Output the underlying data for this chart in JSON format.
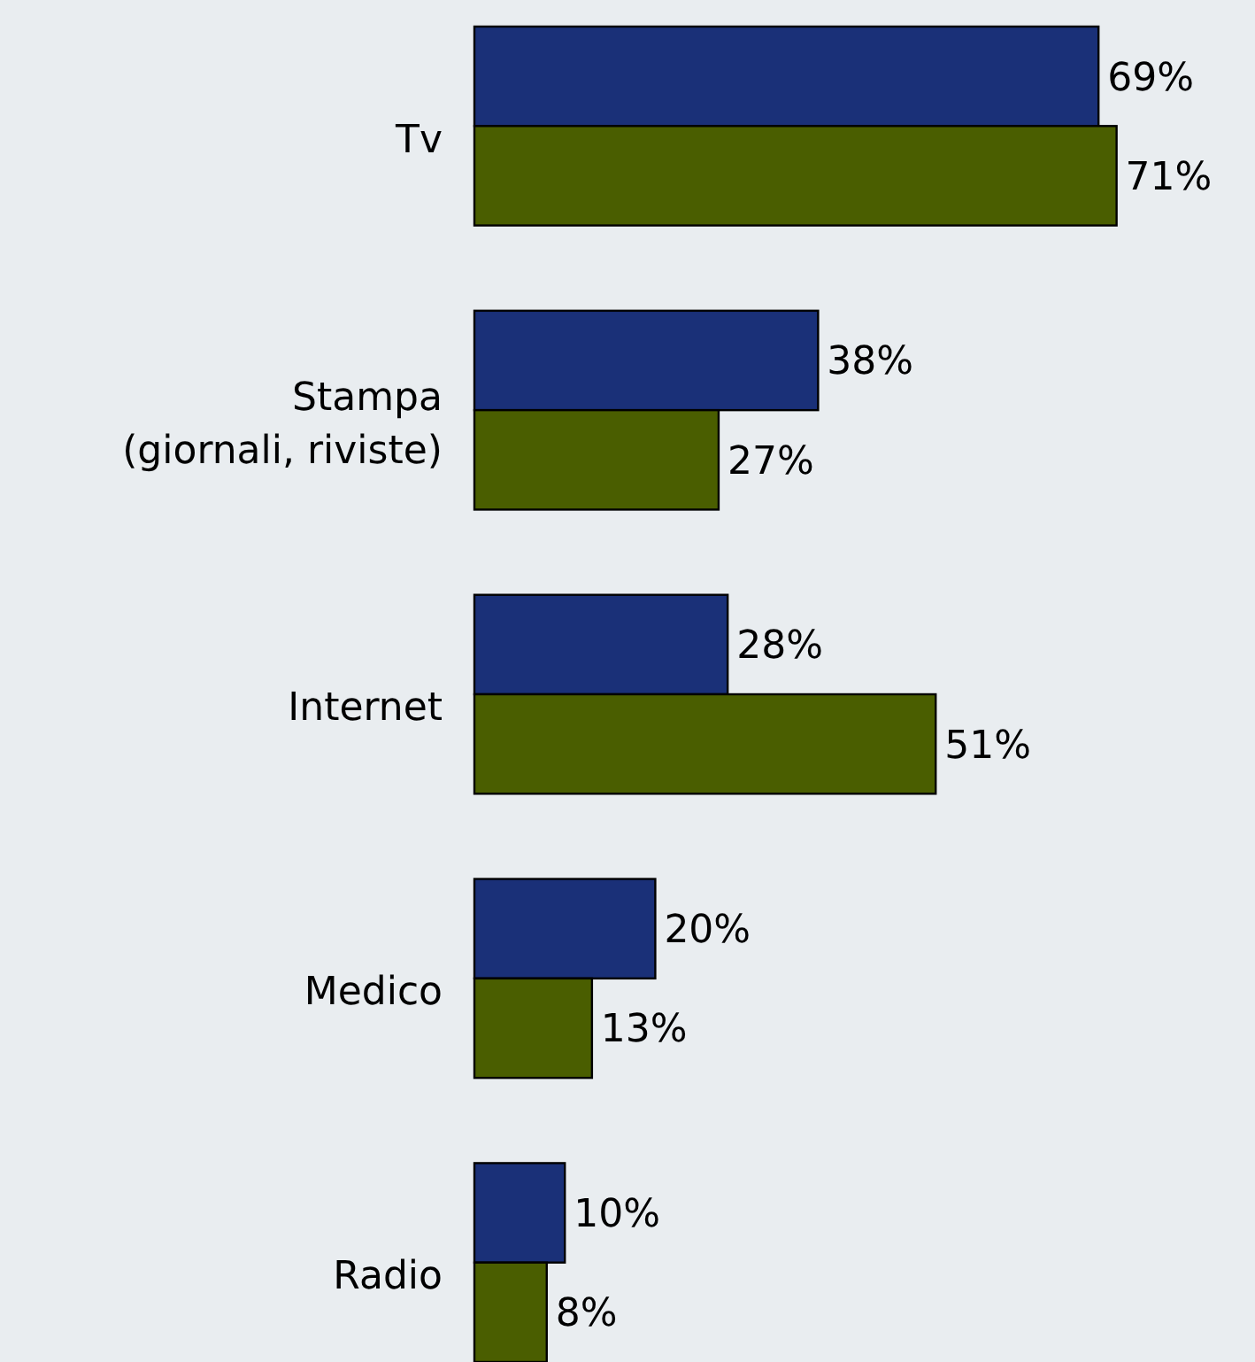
{
  "chart_data": {
    "type": "bar",
    "orientation": "horizontal",
    "categories": [
      "Tv",
      "Stampa\n(giornali, riviste)",
      "Internet",
      "Medico",
      "Radio"
    ],
    "series": [
      {
        "color": "#1a3078",
        "values": [
          69,
          38,
          28,
          20,
          10
        ],
        "value_labels": [
          "69%",
          "38%",
          "28%",
          "20%",
          "10%"
        ]
      },
      {
        "color": "#4a5e00",
        "values": [
          71,
          27,
          51,
          13,
          8
        ],
        "value_labels": [
          "71%",
          "27%",
          "51%",
          "13%",
          "8%"
        ]
      }
    ]
  }
}
